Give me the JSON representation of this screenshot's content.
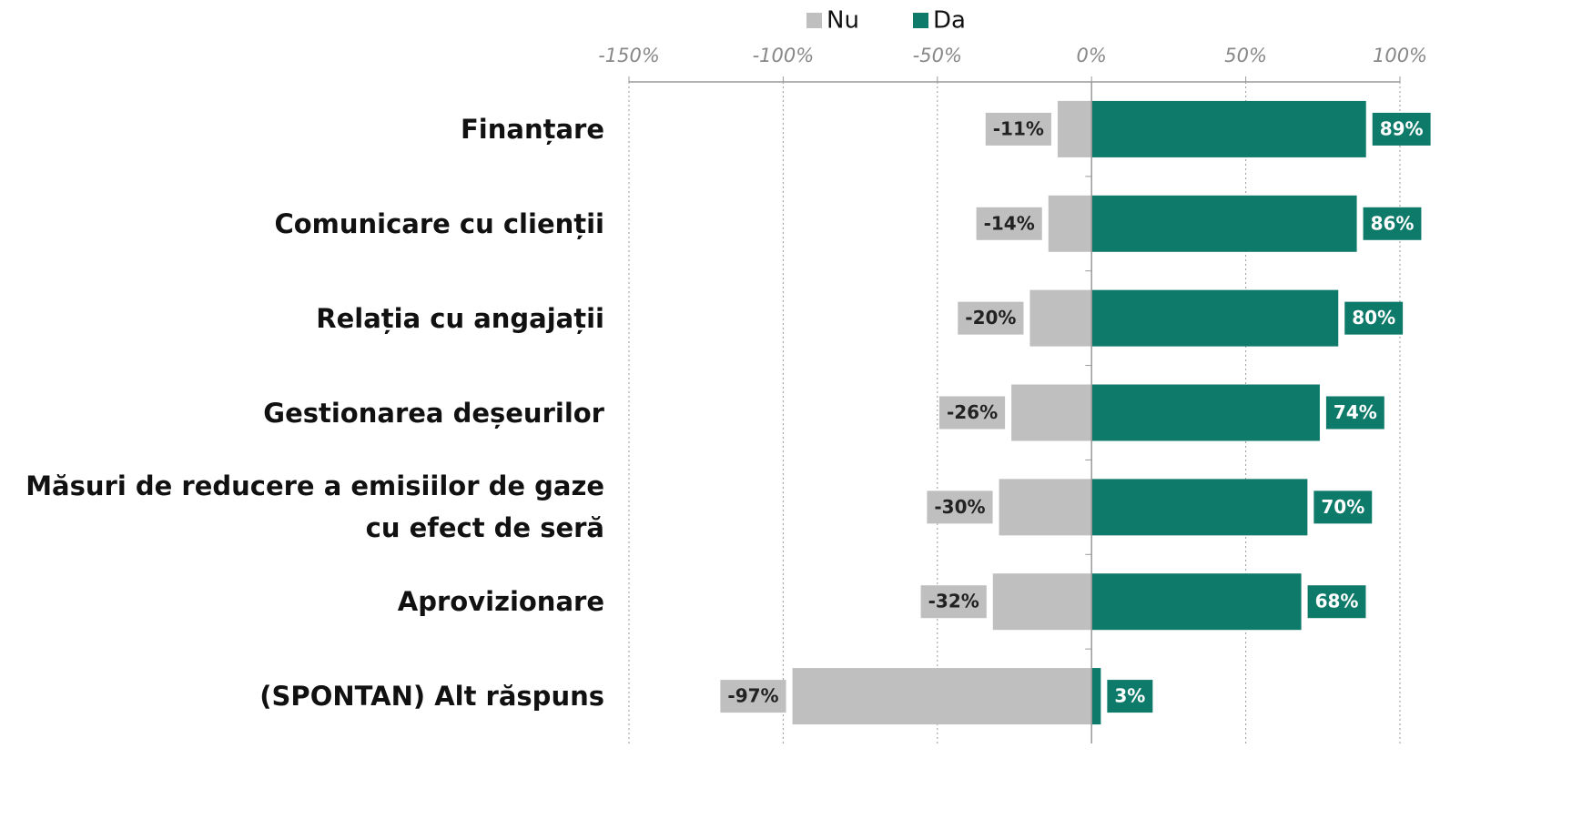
{
  "chart_data": {
    "type": "diverging-bar",
    "categories": [
      "Finanțare",
      "Comunicare cu clienții",
      "Relația cu angajații",
      "Gestionarea deșeurilor",
      "Măsuri de reducere a emisiilor de gaze cu efect de seră",
      "Aprovizionare",
      "(SPONTAN) Alt răspuns"
    ],
    "series": [
      {
        "name": "Nu",
        "color": "#bfbfbf",
        "values": [
          -11,
          -14,
          -20,
          -26,
          -30,
          -32,
          -97
        ],
        "value_labels": [
          "-11%",
          "-14%",
          "-20%",
          "-26%",
          "-30%",
          "-32%",
          "-97%"
        ]
      },
      {
        "name": "Da",
        "color": "#0e7a6a",
        "values": [
          89,
          86,
          80,
          74,
          70,
          68,
          3
        ],
        "value_labels": [
          "89%",
          "86%",
          "80%",
          "74%",
          "70%",
          "68%",
          "3%"
        ]
      }
    ],
    "xlim": [
      -150,
      100
    ],
    "xticks": [
      {
        "value": -150,
        "label": "-150%"
      },
      {
        "value": -100,
        "label": "-100%"
      },
      {
        "value": -50,
        "label": "-50%"
      },
      {
        "value": 0,
        "label": "0%"
      },
      {
        "value": 50,
        "label": "50%"
      },
      {
        "value": 100,
        "label": "100%"
      }
    ],
    "grid": true,
    "legend": "top"
  }
}
